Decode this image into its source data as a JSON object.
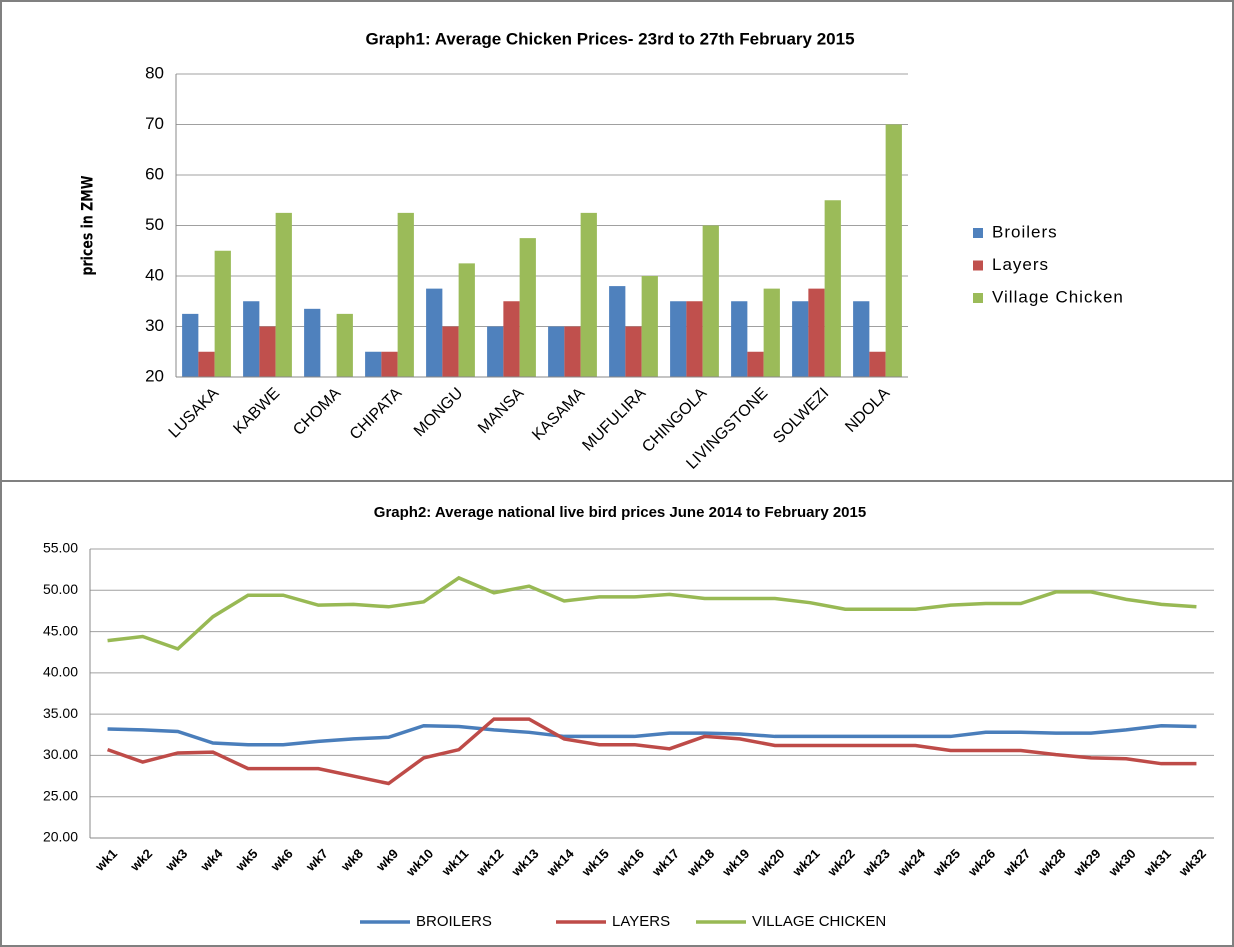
{
  "chart_data": [
    {
      "type": "bar",
      "title": "Graph1: Average Chicken Prices- 23rd to 27th February 2015",
      "y_label": "prices in ZMW",
      "categories": [
        "LUSAKA",
        "KABWE",
        "CHOMA",
        "CHIPATA",
        "MONGU",
        "MANSA",
        "KASAMA",
        "MUFULIRA",
        "CHINGOLA",
        "LIVINGSTONE",
        "SOLWEZI",
        "NDOLA"
      ],
      "series": [
        {
          "name": "Broilers",
          "color": "#4f81bd",
          "values": [
            32.5,
            35,
            33.5,
            25,
            37.5,
            30,
            30,
            38,
            35,
            35,
            35,
            35
          ]
        },
        {
          "name": "Layers",
          "color": "#c0504d",
          "values": [
            25,
            30,
            null,
            25,
            30,
            35,
            30,
            30,
            35,
            25,
            37.5,
            25
          ]
        },
        {
          "name": "Village Chicken",
          "color": "#9bbb59",
          "values": [
            45,
            52.5,
            32.5,
            52.5,
            42.5,
            47.5,
            52.5,
            40,
            50,
            37.5,
            55,
            70
          ]
        }
      ],
      "ylim": [
        20,
        80
      ],
      "yticks": [
        20,
        30,
        40,
        50,
        60,
        70,
        80
      ],
      "grid": true,
      "legend": "right"
    },
    {
      "type": "line",
      "title": "Graph2: Average national live bird prices June 2014 to February 2015",
      "categories": [
        "wk1",
        "wk2",
        "wk3",
        "wk4",
        "wk5",
        "wk6",
        "wk7",
        "wk8",
        "wk9",
        "wk10",
        "wk11",
        "wk12",
        "wk13",
        "wk14",
        "wk15",
        "wk16",
        "wk17",
        "wk18",
        "wk19",
        "wk20",
        "wk21",
        "wk22",
        "wk23",
        "wk24",
        "wk25",
        "wk26",
        "wk27",
        "wk28",
        "wk29",
        "wk30",
        "wk31",
        "wk32"
      ],
      "series": [
        {
          "name": "BROILERS",
          "color": "#4a7ebb",
          "values": [
            33.2,
            33.1,
            32.9,
            31.5,
            31.3,
            31.3,
            31.7,
            32,
            32.2,
            33.6,
            33.5,
            33.1,
            32.8,
            32.3,
            32.3,
            32.3,
            32.7,
            32.7,
            32.6,
            32.3,
            32.3,
            32.3,
            32.3,
            32.3,
            32.3,
            32.8,
            32.8,
            32.7,
            32.7,
            33.1,
            33.6,
            33.5
          ]
        },
        {
          "name": "LAYERS",
          "color": "#be4b48",
          "values": [
            30.7,
            29.2,
            30.3,
            30.4,
            28.4,
            28.4,
            28.4,
            27.5,
            26.6,
            29.7,
            30.7,
            34.4,
            34.4,
            32,
            31.3,
            31.3,
            30.8,
            32.3,
            32,
            31.2,
            31.2,
            31.2,
            31.2,
            31.2,
            30.6,
            30.6,
            30.6,
            30.1,
            29.7,
            29.6,
            29,
            29
          ]
        },
        {
          "name": "VILLAGE CHICKEN",
          "color": "#98b954",
          "values": [
            43.9,
            44.4,
            42.9,
            46.8,
            49.4,
            49.4,
            48.2,
            48.3,
            48,
            48.6,
            51.5,
            49.7,
            50.5,
            48.7,
            49.2,
            49.2,
            49.5,
            49,
            49,
            49,
            48.5,
            47.7,
            47.7,
            47.7,
            48.2,
            48.4,
            48.4,
            49.8,
            49.8,
            48.9,
            48.3,
            48
          ]
        }
      ],
      "ylim": [
        20,
        55
      ],
      "yticks": [
        {
          "value": 20,
          "label": "20.00"
        },
        {
          "value": 25,
          "label": "25.00"
        },
        {
          "value": 30,
          "label": "30.00"
        },
        {
          "value": 35,
          "label": "35.00"
        },
        {
          "value": 40,
          "label": "40.00"
        },
        {
          "value": 45,
          "label": "45.00"
        },
        {
          "value": 50,
          "label": "50.00"
        },
        {
          "value": 55,
          "label": "55.00"
        }
      ],
      "grid": true,
      "legend": "bottom"
    }
  ]
}
